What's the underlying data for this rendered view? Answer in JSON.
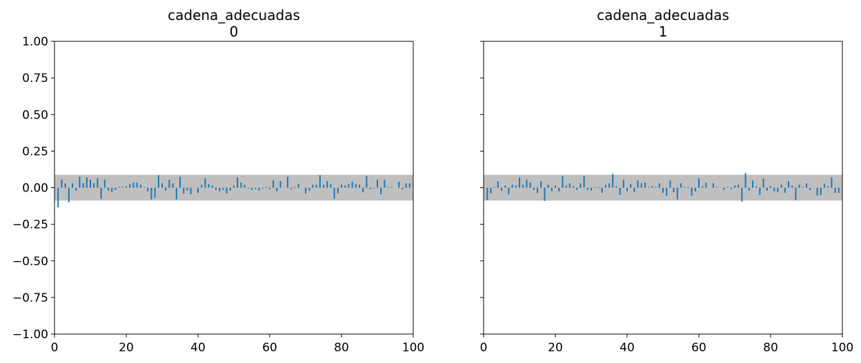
{
  "colors": {
    "stem": "#1f77b4",
    "band": "#bfbfbf",
    "axes": "#000000",
    "background": "#ffffff"
  },
  "chart_data": [
    {
      "type": "bar",
      "subtype": "autocorrelation-stem",
      "title": "cadena_adecuadas",
      "subtitle": "0",
      "xlabel": "",
      "ylabel": "",
      "xlim": [
        0,
        100
      ],
      "ylim": [
        -1,
        1
      ],
      "xticks": [
        0,
        20,
        40,
        60,
        80,
        100
      ],
      "yticks": [
        -1.0,
        -0.75,
        -0.5,
        -0.25,
        0.0,
        0.25,
        0.5,
        0.75,
        1.0
      ],
      "ytick_labels": [
        "−1.00",
        "−0.75",
        "−0.50",
        "−0.25",
        "0.00",
        "0.25",
        "0.50",
        "0.75",
        "1.00"
      ],
      "show_yticklabels": true,
      "grid": false,
      "confidence_band": [
        -0.088,
        0.088
      ],
      "x": [
        1,
        2,
        3,
        4,
        5,
        6,
        7,
        8,
        9,
        10,
        11,
        12,
        13,
        14,
        15,
        16,
        17,
        18,
        19,
        20,
        21,
        22,
        23,
        24,
        25,
        26,
        27,
        28,
        29,
        30,
        31,
        32,
        33,
        34,
        35,
        36,
        37,
        38,
        39,
        40,
        41,
        42,
        43,
        44,
        45,
        46,
        47,
        48,
        49,
        50,
        51,
        52,
        53,
        54,
        55,
        56,
        57,
        58,
        59,
        60,
        61,
        62,
        63,
        64,
        65,
        66,
        67,
        68,
        69,
        70,
        71,
        72,
        73,
        74,
        75,
        76,
        77,
        78,
        79,
        80,
        81,
        82,
        83,
        84,
        85,
        86,
        87,
        88,
        89,
        90,
        91,
        92,
        93,
        94,
        95,
        96,
        97,
        98,
        99
      ],
      "values": [
        -0.135,
        0.055,
        0.03,
        -0.1,
        0.03,
        -0.02,
        0.075,
        0.03,
        0.07,
        0.055,
        0.03,
        0.065,
        -0.075,
        0.055,
        -0.02,
        -0.03,
        -0.015,
        0.005,
        0.005,
        0.01,
        0.025,
        0.035,
        0.035,
        0.02,
        0.005,
        -0.025,
        -0.08,
        -0.07,
        0.085,
        0.03,
        -0.02,
        0.055,
        0.03,
        -0.08,
        0.075,
        -0.04,
        -0.02,
        -0.045,
        0.0,
        -0.035,
        0.02,
        0.065,
        0.025,
        0.015,
        -0.015,
        -0.025,
        -0.015,
        -0.04,
        -0.02,
        0.015,
        0.07,
        0.035,
        0.02,
        -0.005,
        -0.015,
        -0.01,
        -0.02,
        -0.005,
        0.005,
        -0.01,
        0.05,
        -0.025,
        0.045,
        0.0,
        0.075,
        -0.01,
        0.005,
        0.025,
        0.0,
        -0.04,
        -0.02,
        0.02,
        0.02,
        0.085,
        0.02,
        0.045,
        0.025,
        -0.075,
        -0.04,
        0.02,
        0.015,
        0.025,
        0.04,
        0.025,
        0.02,
        -0.03,
        0.08,
        -0.01,
        -0.005,
        0.055,
        -0.045,
        0.055,
        0.005,
        0.005,
        0.0,
        0.04,
        -0.01,
        0.03,
        0.03
      ]
    },
    {
      "type": "bar",
      "subtype": "autocorrelation-stem",
      "title": "cadena_adecuadas",
      "subtitle": "1",
      "xlabel": "",
      "ylabel": "",
      "xlim": [
        0,
        100
      ],
      "ylim": [
        -1,
        1
      ],
      "xticks": [
        0,
        20,
        40,
        60,
        80,
        100
      ],
      "yticks": [
        -1.0,
        -0.75,
        -0.5,
        -0.25,
        0.0,
        0.25,
        0.5,
        0.75,
        1.0
      ],
      "show_yticklabels": false,
      "grid": false,
      "confidence_band": [
        -0.088,
        0.088
      ],
      "x": [
        1,
        2,
        3,
        4,
        5,
        6,
        7,
        8,
        9,
        10,
        11,
        12,
        13,
        14,
        15,
        16,
        17,
        18,
        19,
        20,
        21,
        22,
        23,
        24,
        25,
        26,
        27,
        28,
        29,
        30,
        31,
        32,
        33,
        34,
        35,
        36,
        37,
        38,
        39,
        40,
        41,
        42,
        43,
        44,
        45,
        46,
        47,
        48,
        49,
        50,
        51,
        52,
        53,
        54,
        55,
        56,
        57,
        58,
        59,
        60,
        61,
        62,
        63,
        64,
        65,
        66,
        67,
        68,
        69,
        70,
        71,
        72,
        73,
        74,
        75,
        76,
        77,
        78,
        79,
        80,
        81,
        82,
        83,
        84,
        85,
        86,
        87,
        88,
        89,
        90,
        91,
        92,
        93,
        94,
        95,
        96,
        97,
        98,
        99
      ],
      "values": [
        -0.085,
        -0.04,
        0.005,
        0.045,
        -0.02,
        0.015,
        -0.045,
        0.02,
        0.015,
        0.07,
        0.02,
        0.055,
        0.035,
        -0.015,
        -0.035,
        0.045,
        -0.09,
        0.02,
        -0.025,
        0.015,
        -0.025,
        0.08,
        0.015,
        0.03,
        0.01,
        -0.015,
        0.03,
        0.08,
        -0.015,
        -0.02,
        0.005,
        0.005,
        -0.035,
        0.02,
        0.03,
        0.095,
        0.01,
        -0.05,
        0.055,
        -0.025,
        0.025,
        -0.03,
        0.05,
        0.03,
        0.035,
        0.005,
        0.01,
        0.005,
        0.03,
        -0.035,
        -0.055,
        0.05,
        -0.03,
        -0.08,
        0.03,
        0.005,
        0.005,
        -0.055,
        -0.025,
        0.065,
        0.01,
        0.035,
        0.0,
        0.03,
        0.005,
        0.0,
        -0.015,
        0.005,
        -0.01,
        0.015,
        0.02,
        -0.095,
        0.1,
        -0.02,
        0.05,
        0.01,
        -0.05,
        0.06,
        -0.02,
        0.01,
        -0.025,
        -0.03,
        0.02,
        -0.035,
        0.045,
        0.015,
        -0.085,
        0.02,
        0.005,
        0.03,
        -0.015,
        0.0,
        -0.055,
        -0.05,
        0.025,
        0.01,
        0.07,
        -0.035,
        -0.035
      ]
    }
  ]
}
